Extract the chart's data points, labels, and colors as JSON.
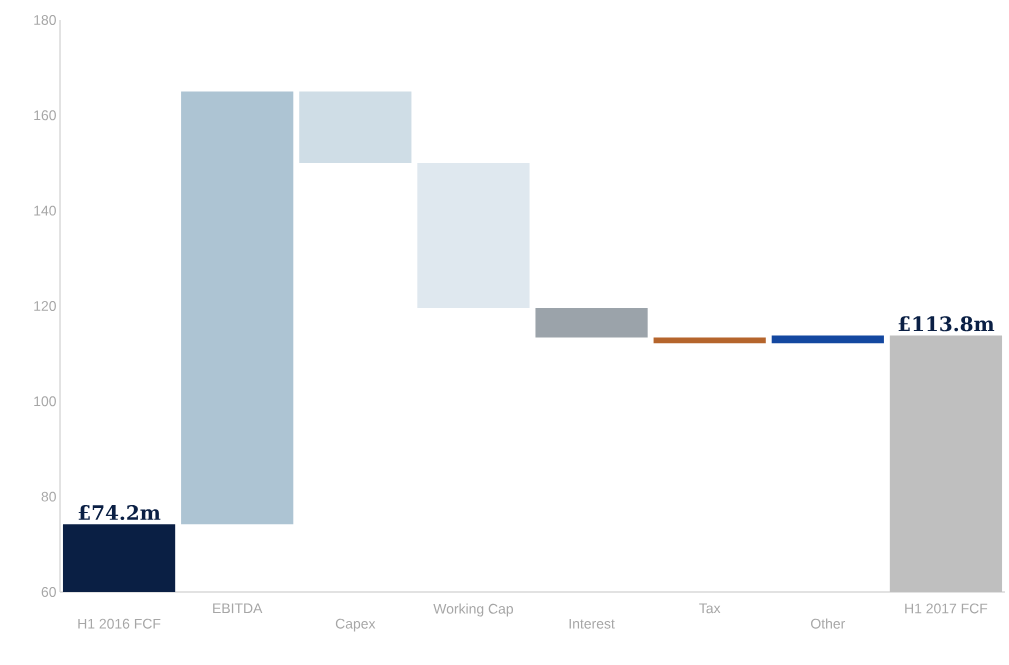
{
  "chart_data": {
    "type": "bar",
    "categories": [
      "H1 2016 FCF",
      "EBITDA",
      "Capex",
      "Working Cap",
      "Interest",
      "Tax",
      "Other",
      "H1 2017 FCF"
    ],
    "values": [
      74.2,
      90.8,
      -15,
      -30.4,
      -6.2,
      -1.2,
      1.6,
      113.8
    ],
    "base": [
      null,
      74.2,
      165,
      150,
      119.6,
      113.4,
      112.2,
      null
    ],
    "colors": [
      "#0a1f44",
      "#adc4d3",
      "#cfdde6",
      "#dfe8ef",
      "#9ba3aa",
      "#b5652c",
      "#1448a0",
      "#bfbfbf"
    ],
    "value_labels": [
      "£74.2m",
      null,
      null,
      null,
      null,
      null,
      null,
      "£113.8m"
    ],
    "ylim": [
      60,
      180
    ],
    "yticks": [
      60,
      80,
      100,
      120,
      140,
      160,
      180
    ]
  }
}
